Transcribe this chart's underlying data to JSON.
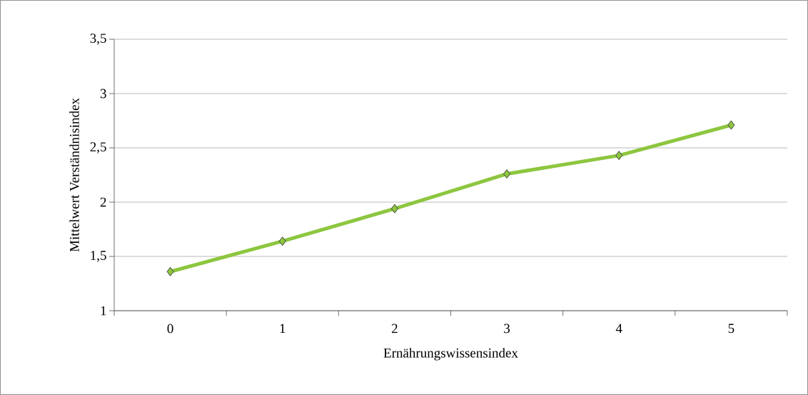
{
  "chart_data": {
    "type": "line",
    "xlabel": "Ernährungswissensindex",
    "ylabel": "Mittelwert Verständnisindex",
    "categories": [
      "0",
      "1",
      "2",
      "3",
      "4",
      "5"
    ],
    "series": [
      {
        "color": "#8dc63f",
        "values": [
          1.36,
          1.64,
          1.94,
          2.26,
          2.43,
          2.71
        ]
      }
    ],
    "ylim": [
      1,
      3.5
    ],
    "yticks": [
      1,
      {
        "value": 1.5,
        "label": "1,5"
      },
      2,
      {
        "value": 2.5,
        "label": "2,5"
      },
      3,
      {
        "value": 3.5,
        "label": "3,5"
      }
    ],
    "grid": "y",
    "marker": "diamond",
    "line_style": "solid"
  }
}
